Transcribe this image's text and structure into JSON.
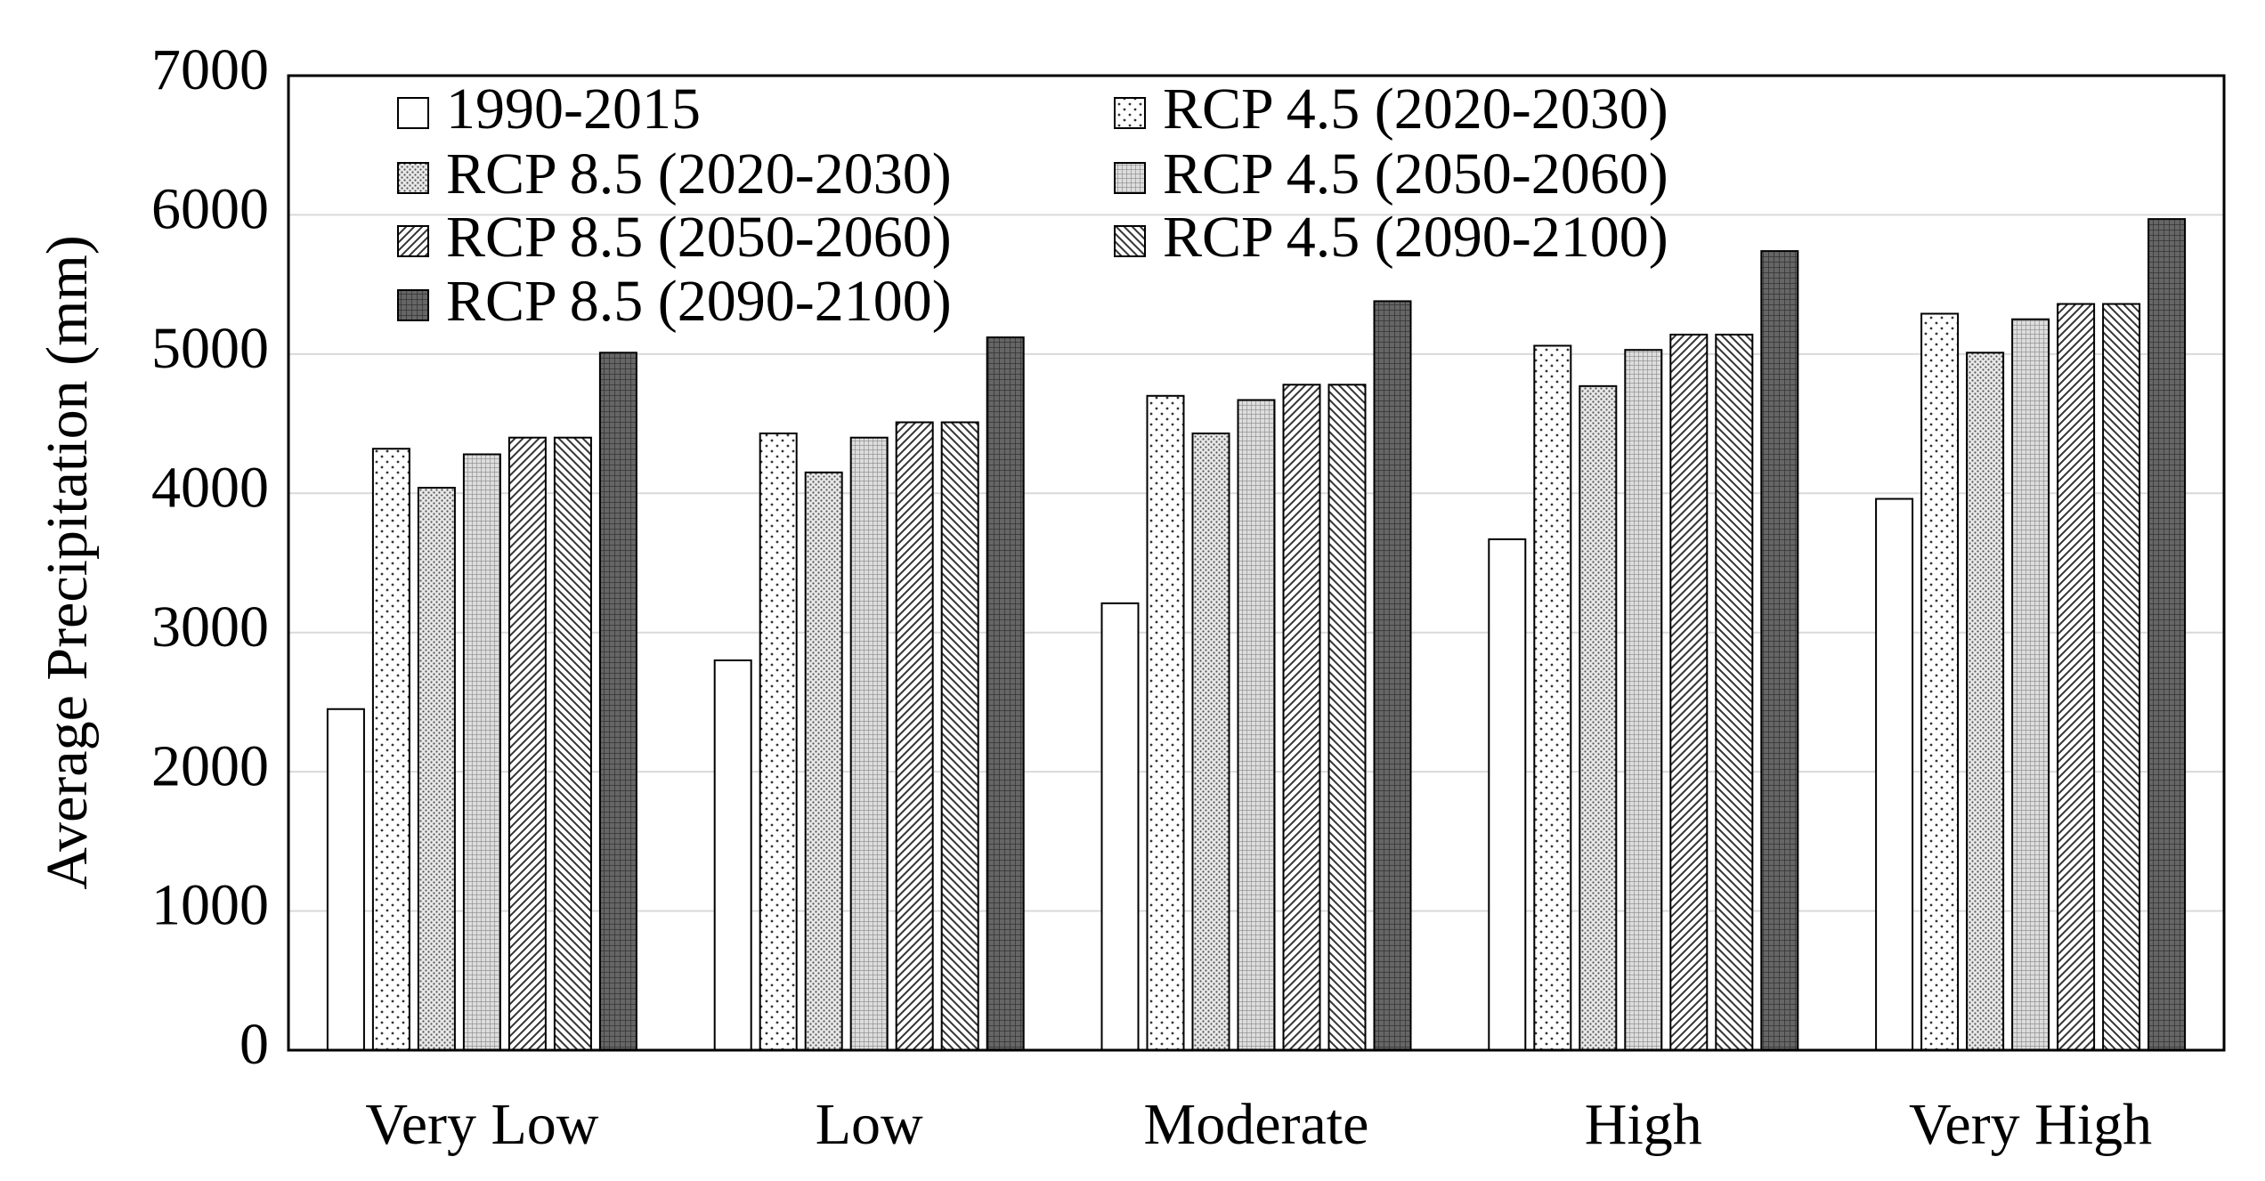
{
  "chart_data": {
    "type": "bar",
    "y_label": "Average Precipitation (mm)",
    "categories": [
      "Very Low",
      "Low",
      "Moderate",
      "High",
      "Very High"
    ],
    "series": [
      {
        "name": "1990-2015",
        "color": "#ffffff",
        "pattern": "plain",
        "values": [
          2450,
          2800,
          3210,
          3670,
          3960
        ]
      },
      {
        "name": "RCP 4.5 (2020-2030)",
        "color": "#ffffff",
        "pattern": "sparse-dots",
        "values": [
          4320,
          4430,
          4700,
          5060,
          5290
        ]
      },
      {
        "name": "RCP 8.5 (2020-2030)",
        "color": "#e0e0e0",
        "pattern": "dense-dots",
        "values": [
          4040,
          4150,
          4430,
          4770,
          5010
        ]
      },
      {
        "name": "RCP 4.5 (2050-2060)",
        "color": "#d0d0d0",
        "pattern": "fine-grid",
        "values": [
          4280,
          4400,
          4670,
          5030,
          5250
        ]
      },
      {
        "name": "RCP 8.5 (2050-2060)",
        "color": "#ffffff",
        "pattern": "forward-diagonal",
        "values": [
          4400,
          4510,
          4780,
          5140,
          5360
        ]
      },
      {
        "name": "RCP 4.5 (2090-2100)",
        "color": "#ffffff",
        "pattern": "backward-diagonal",
        "values": [
          4400,
          4510,
          4780,
          5140,
          5360
        ]
      },
      {
        "name": "RCP 8.5 (2090-2100)",
        "color": "#707070",
        "pattern": "dark-grid",
        "values": [
          5010,
          5120,
          5380,
          5740,
          5970
        ]
      }
    ],
    "ylim": [
      0,
      7000
    ],
    "yticks": [
      0,
      1000,
      2000,
      3000,
      4000,
      5000,
      6000,
      7000
    ],
    "grid": true,
    "legend": "top-left"
  }
}
